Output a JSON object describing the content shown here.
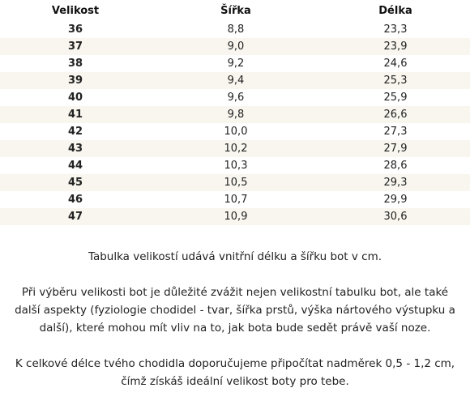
{
  "table": {
    "headers": {
      "size": "Velikost",
      "width": "Šířka",
      "length": "Délka"
    },
    "rows": [
      {
        "size": "36",
        "width": "8,8",
        "length": "23,3"
      },
      {
        "size": "37",
        "width": "9,0",
        "length": "23,9"
      },
      {
        "size": "38",
        "width": "9,2",
        "length": "24,6"
      },
      {
        "size": "39",
        "width": "9,4",
        "length": "25,3"
      },
      {
        "size": "40",
        "width": "9,6",
        "length": "25,9"
      },
      {
        "size": "41",
        "width": "9,8",
        "length": "26,6"
      },
      {
        "size": "42",
        "width": "10,0",
        "length": "27,3"
      },
      {
        "size": "43",
        "width": "10,2",
        "length": "27,9"
      },
      {
        "size": "44",
        "width": "10,3",
        "length": "28,6"
      },
      {
        "size": "45",
        "width": "10,5",
        "length": "29,3"
      },
      {
        "size": "46",
        "width": "10,7",
        "length": "29,9"
      },
      {
        "size": "47",
        "width": "10,9",
        "length": "30,6"
      }
    ]
  },
  "notes": {
    "p1": "Tabulka velikostí udává vnitřní délku a šířku bot v cm.",
    "p2": "Při výběru velikosti bot je důležité zvážit nejen velikostní tabulku bot, ale také další aspekty (fyziologie chodidel - tvar, šířka prstů, výška nártového výstupku a další), které mohou mít vliv na to, jak bota bude sedět právě vaší noze.",
    "p3": "K celkové délce tvého chodidla doporučujeme připočítat nadměrek 0,5 - 1,2 cm, čímž získáš ideální velikost boty pro tebe."
  },
  "colors": {
    "stripe": "#f8f6ee",
    "text": "#222222"
  }
}
